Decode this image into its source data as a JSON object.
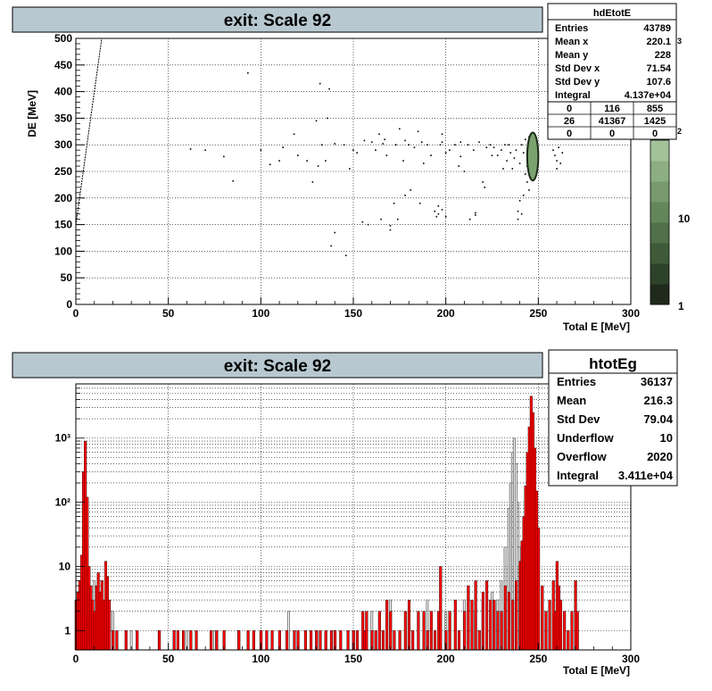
{
  "top_panel": {
    "title": "exit: Scale 92",
    "stats": {
      "name": "hdEtotE",
      "rows": [
        {
          "label": "Entries",
          "value": "43789"
        },
        {
          "label": "Mean x",
          "value": "220.1"
        },
        {
          "label": "Mean y",
          "value": "228"
        },
        {
          "label": "Std Dev x",
          "value": "71.54"
        },
        {
          "label": "Std Dev y",
          "value": "107.6"
        },
        {
          "label": "Integral",
          "value": "4.137e+04"
        }
      ],
      "grid": [
        [
          "0",
          "116",
          "855"
        ],
        [
          "26",
          "41367",
          "1425"
        ],
        [
          "0",
          "0",
          "0"
        ]
      ]
    },
    "palette": {
      "labels": [
        "10",
        "1"
      ],
      "exp_labels": [
        "3",
        "2"
      ],
      "colors": [
        "#1f2a1c",
        "#2e4229",
        "#3f5a38",
        "#517049",
        "#64865b",
        "#789a6e",
        "#8dae83",
        "#a3c299"
      ]
    }
  },
  "bottom_panel": {
    "title": "exit: Scale 92",
    "stats": {
      "name": "htotEg",
      "rows": [
        {
          "label": "Entries",
          "value": "36137"
        },
        {
          "label": "Mean",
          "value": "216.3"
        },
        {
          "label": "Std Dev",
          "value": "79.04"
        },
        {
          "label": "Underflow",
          "value": "10"
        },
        {
          "label": "Overflow",
          "value": "2020"
        },
        {
          "label": "Integral",
          "value": "3.411e+04"
        }
      ]
    }
  },
  "chart_data": [
    {
      "type": "scatter",
      "title": "exit: Scale 92",
      "xlabel": "Total E [MeV]",
      "ylabel": "DE [MeV]",
      "xlim": [
        0,
        300
      ],
      "ylim": [
        0,
        500
      ],
      "grid": true,
      "x_ticks": [
        0,
        50,
        100,
        150,
        200,
        250,
        300
      ],
      "y_ticks": [
        0,
        50,
        100,
        150,
        200,
        250,
        300,
        350,
        400,
        450,
        500
      ],
      "legend": "top-right",
      "line": {
        "x": [
          0,
          14
        ],
        "y": [
          150,
          500
        ]
      },
      "core_cluster": {
        "x_center": 247,
        "y_center": 278,
        "x_halfwidth": 3,
        "y_halfwidth": 45
      },
      "points": [
        [
          62,
          292
        ],
        [
          70,
          290
        ],
        [
          80,
          278
        ],
        [
          85,
          232
        ],
        [
          93,
          435
        ],
        [
          100,
          290
        ],
        [
          105,
          263
        ],
        [
          110,
          270
        ],
        [
          112,
          295
        ],
        [
          118,
          320
        ],
        [
          120,
          280
        ],
        [
          125,
          270
        ],
        [
          128,
          230
        ],
        [
          130,
          345
        ],
        [
          131,
          260
        ],
        [
          132,
          415
        ],
        [
          133,
          300
        ],
        [
          135,
          270
        ],
        [
          136,
          350
        ],
        [
          137,
          405
        ],
        [
          138,
          110
        ],
        [
          140,
          135
        ],
        [
          145,
          300
        ],
        [
          146,
          92
        ],
        [
          148,
          255
        ],
        [
          150,
          290
        ],
        [
          152,
          285
        ],
        [
          155,
          155
        ],
        [
          158,
          150
        ],
        [
          160,
          305
        ],
        [
          162,
          290
        ],
        [
          164,
          320
        ],
        [
          165,
          160
        ],
        [
          167,
          310
        ],
        [
          168,
          280
        ],
        [
          170,
          140
        ],
        [
          172,
          190
        ],
        [
          173,
          300
        ],
        [
          175,
          330
        ],
        [
          177,
          270
        ],
        [
          178,
          205
        ],
        [
          180,
          300
        ],
        [
          181,
          215
        ],
        [
          183,
          295
        ],
        [
          185,
          325
        ],
        [
          186,
          190
        ],
        [
          188,
          265
        ],
        [
          190,
          300
        ],
        [
          192,
          280
        ],
        [
          194,
          175
        ],
        [
          195,
          165
        ],
        [
          196,
          185
        ],
        [
          197,
          300
        ],
        [
          198,
          320
        ],
        [
          200,
          285
        ],
        [
          202,
          290
        ],
        [
          205,
          300
        ],
        [
          207,
          260
        ],
        [
          208,
          278
        ],
        [
          210,
          250
        ],
        [
          212,
          300
        ],
        [
          213,
          160
        ],
        [
          215,
          290
        ],
        [
          218,
          305
        ],
        [
          220,
          230
        ],
        [
          221,
          220
        ],
        [
          222,
          295
        ],
        [
          224,
          300
        ],
        [
          225,
          280
        ],
        [
          226,
          295
        ],
        [
          228,
          280
        ],
        [
          230,
          290
        ],
        [
          231,
          255
        ],
        [
          232,
          300
        ],
        [
          233,
          270
        ],
        [
          234,
          300
        ],
        [
          235,
          285
        ],
        [
          236,
          255
        ],
        [
          237,
          275
        ],
        [
          238,
          290
        ],
        [
          239,
          160
        ],
        [
          239,
          175
        ],
        [
          240,
          265
        ],
        [
          240,
          195
        ],
        [
          241,
          300
        ],
        [
          241,
          170
        ],
        [
          242,
          285
        ],
        [
          242,
          205
        ],
        [
          243,
          310
        ],
        [
          243,
          245
        ],
        [
          244,
          260
        ],
        [
          244,
          230
        ],
        [
          245,
          315
        ],
        [
          245,
          215
        ],
        [
          258,
          290
        ],
        [
          259,
          280
        ],
        [
          260,
          270
        ],
        [
          260,
          255
        ],
        [
          261,
          295
        ],
        [
          262,
          265
        ],
        [
          263,
          285
        ],
        [
          198,
          305
        ],
        [
          178,
          308
        ],
        [
          187,
          305
        ],
        [
          208,
          305
        ],
        [
          156,
          308
        ],
        [
          166,
          302
        ],
        [
          140,
          302
        ],
        [
          200,
          165
        ],
        [
          198,
          178
        ],
        [
          196,
          170
        ],
        [
          216,
          172
        ],
        [
          216,
          168
        ],
        [
          170,
          148
        ],
        [
          174,
          160
        ]
      ]
    },
    {
      "type": "bar",
      "title": "exit: Scale 92",
      "xlabel": "Total E [MeV]",
      "ylabel": "",
      "xlim": [
        0,
        300
      ],
      "ylim": [
        0.5,
        7000
      ],
      "y_scale": "log",
      "grid": true,
      "x_ticks": [
        0,
        50,
        100,
        150,
        200,
        250,
        300
      ],
      "y_tick_labels": [
        "1",
        "10",
        "10²",
        "10³"
      ],
      "legend": "top-right",
      "series": [
        {
          "name": "",
          "color": "#ff0000",
          "x": [
            0,
            1,
            2,
            3,
            4,
            5,
            6,
            7,
            8,
            9,
            10,
            11,
            12,
            13,
            14,
            15,
            16,
            17,
            18,
            20,
            22,
            27,
            33,
            45,
            53,
            55,
            58,
            62,
            65,
            73,
            76,
            80,
            88,
            93,
            96,
            100,
            103,
            106,
            110,
            114,
            118,
            120,
            124,
            127,
            130,
            132,
            135,
            138,
            140,
            143,
            147,
            150,
            152,
            155,
            156,
            157,
            160,
            162,
            164,
            166,
            168,
            170,
            172,
            175,
            178,
            180,
            182,
            185,
            188,
            190,
            192,
            194,
            196,
            197,
            200,
            202,
            205,
            207,
            210,
            212,
            214,
            216,
            218,
            220,
            222,
            224,
            226,
            228,
            230,
            232,
            234,
            236,
            238,
            240,
            241,
            242,
            243,
            244,
            245,
            246,
            247,
            248,
            249,
            250,
            252,
            254,
            256,
            258,
            259,
            260,
            261,
            262,
            264,
            266,
            268,
            270,
            271
          ],
          "values": [
            3,
            4,
            6,
            15,
            300,
            900,
            120,
            10,
            5,
            3,
            2,
            5,
            8,
            4,
            6,
            3,
            12,
            7,
            3,
            1,
            1,
            1,
            1,
            1,
            1,
            1,
            1,
            1,
            1,
            1,
            1,
            1,
            1,
            1,
            1,
            1,
            1,
            1,
            1,
            1,
            1,
            1,
            1,
            1,
            1,
            1,
            1,
            1,
            1,
            1,
            1,
            1,
            1,
            2,
            1,
            2,
            1,
            1,
            2,
            1,
            3,
            2,
            1,
            1,
            2,
            3,
            1,
            2,
            2,
            1,
            2,
            1,
            2,
            10,
            1,
            2,
            3,
            1,
            2,
            5,
            3,
            6,
            1,
            4,
            6,
            3,
            3,
            2,
            2,
            5,
            4,
            3,
            6,
            12,
            25,
            60,
            180,
            600,
            1500,
            4500,
            2500,
            700,
            150,
            40,
            5,
            2,
            3,
            6,
            2,
            12,
            5,
            3,
            2,
            1,
            2,
            6,
            2
          ]
        },
        {
          "name": "",
          "color": "#808080",
          "x": [
            5,
            10,
            15,
            20,
            30,
            45,
            60,
            75,
            88,
            100,
            115,
            130,
            140,
            150,
            160,
            170,
            180,
            190,
            200,
            210,
            215,
            220,
            225,
            228,
            230,
            232,
            234,
            235,
            236,
            237,
            238,
            239,
            240,
            241,
            242
          ],
          "values": [
            5,
            6,
            3,
            2,
            1,
            1,
            1,
            1,
            1,
            1,
            2,
            1,
            1,
            1,
            2,
            3,
            2,
            3,
            2,
            3,
            2,
            3,
            4,
            3,
            6,
            20,
            80,
            200,
            600,
            1000,
            400,
            100,
            20,
            5,
            2
          ]
        }
      ]
    }
  ]
}
